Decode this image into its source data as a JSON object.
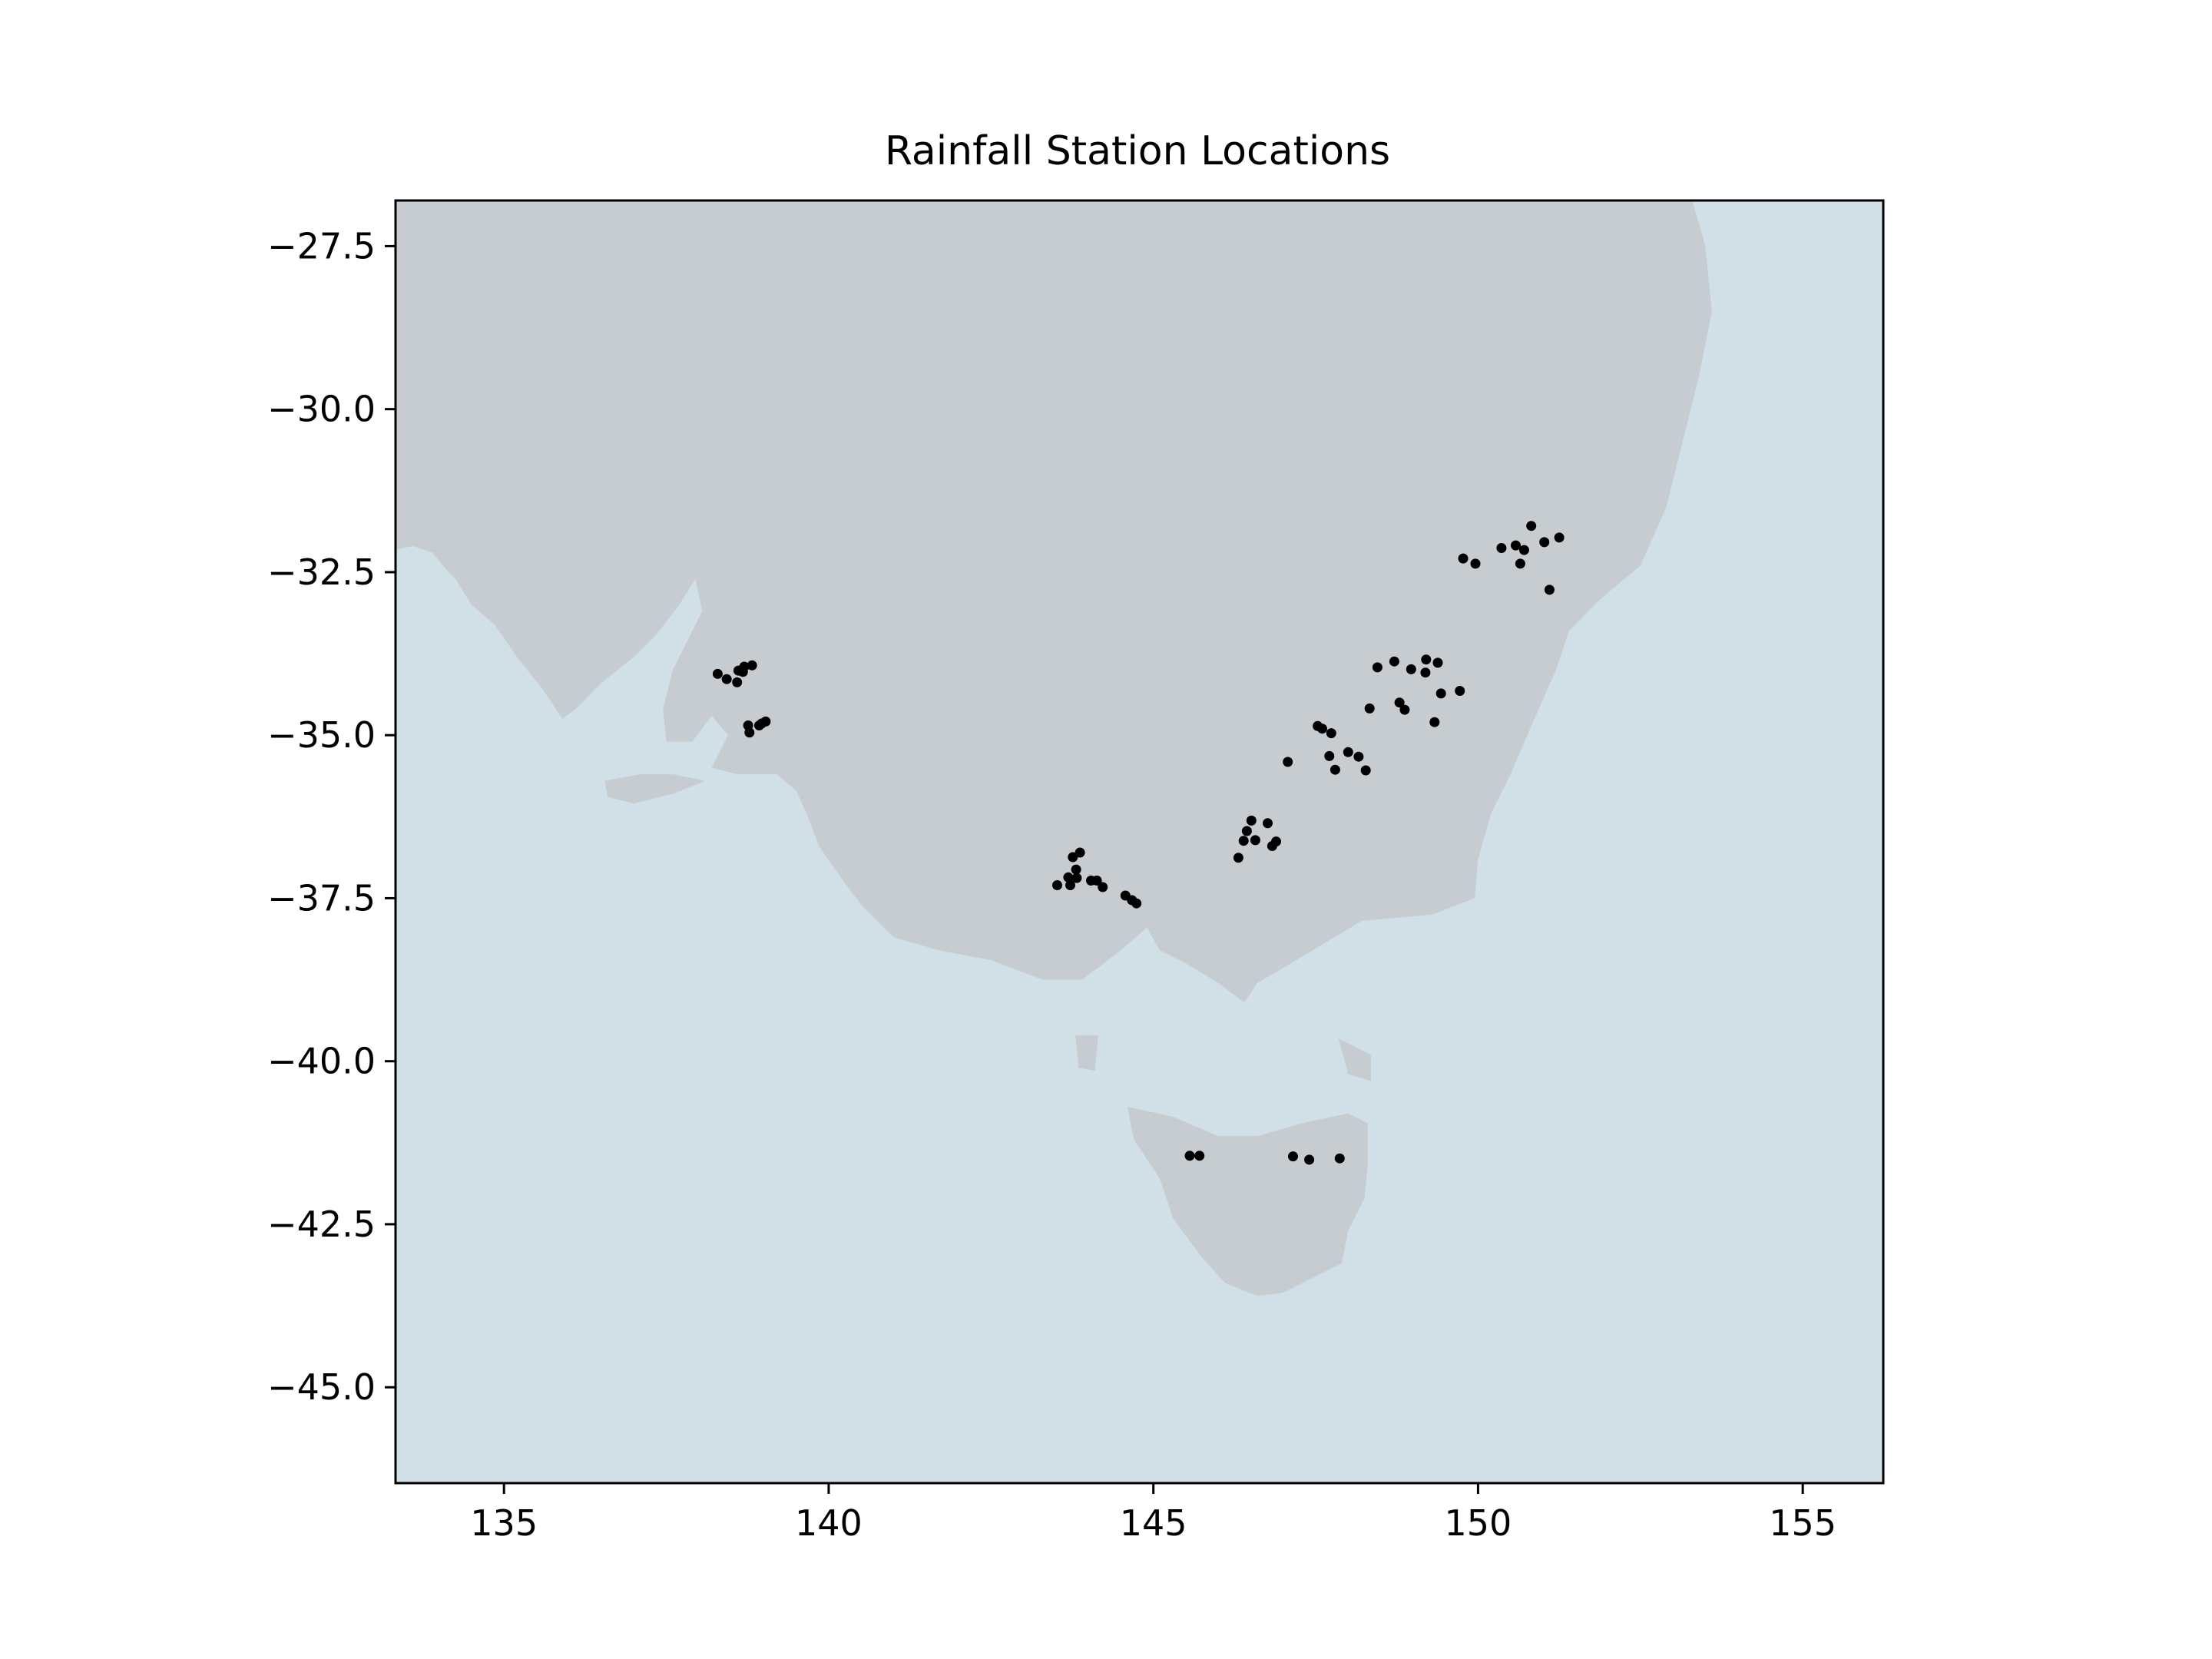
{
  "title": "Rainfall Station Locations",
  "map": {
    "extent": {
      "lon": [
        133.33,
        156.24
      ],
      "lat": [
        -46.47,
        -26.8
      ]
    },
    "colors": {
      "land": "#c6cccf",
      "ocean": "#d1e0e6",
      "station": "#000000",
      "frame": "#000000"
    },
    "x_ticks": [
      {
        "value": 135,
        "label": "135"
      },
      {
        "value": 140,
        "label": "140"
      },
      {
        "value": 145,
        "label": "145"
      },
      {
        "value": 150,
        "label": "150"
      },
      {
        "value": 155,
        "label": "155"
      }
    ],
    "y_ticks": [
      {
        "value": -27.5,
        "label": "−27.5"
      },
      {
        "value": -30.0,
        "label": "−30.0"
      },
      {
        "value": -32.5,
        "label": "−32.5"
      },
      {
        "value": -35.0,
        "label": "−35.0"
      },
      {
        "value": -37.5,
        "label": "−37.5"
      },
      {
        "value": -40.0,
        "label": "−40.0"
      },
      {
        "value": -42.5,
        "label": "−42.5"
      },
      {
        "value": -45.0,
        "label": "−45.0"
      }
    ],
    "mainland": [
      [
        133.33,
        -32.15
      ],
      [
        133.6,
        -32.1
      ],
      [
        133.9,
        -32.2
      ],
      [
        134.1,
        -32.45
      ],
      [
        134.25,
        -32.6
      ],
      [
        134.5,
        -33.0
      ],
      [
        134.85,
        -33.3
      ],
      [
        135.2,
        -33.8
      ],
      [
        135.6,
        -34.3
      ],
      [
        135.9,
        -34.75
      ],
      [
        136.1,
        -34.6
      ],
      [
        136.5,
        -34.2
      ],
      [
        137.0,
        -33.8
      ],
      [
        137.35,
        -33.45
      ],
      [
        137.7,
        -33.0
      ],
      [
        137.95,
        -32.6
      ],
      [
        138.05,
        -33.1
      ],
      [
        137.8,
        -33.6
      ],
      [
        137.6,
        -34.0
      ],
      [
        137.45,
        -34.6
      ],
      [
        137.5,
        -35.1
      ],
      [
        137.9,
        -35.1
      ],
      [
        138.2,
        -34.7
      ],
      [
        138.45,
        -35.0
      ],
      [
        138.2,
        -35.5
      ],
      [
        138.6,
        -35.6
      ],
      [
        139.2,
        -35.6
      ],
      [
        139.5,
        -35.85
      ],
      [
        139.7,
        -36.3
      ],
      [
        139.85,
        -36.7
      ],
      [
        140.2,
        -37.2
      ],
      [
        140.5,
        -37.6
      ],
      [
        141.0,
        -38.1
      ],
      [
        141.7,
        -38.3
      ],
      [
        142.5,
        -38.45
      ],
      [
        143.3,
        -38.75
      ],
      [
        143.9,
        -38.75
      ],
      [
        144.5,
        -38.3
      ],
      [
        144.9,
        -37.95
      ],
      [
        145.1,
        -38.3
      ],
      [
        145.5,
        -38.5
      ],
      [
        146.0,
        -38.8
      ],
      [
        146.4,
        -39.1
      ],
      [
        146.6,
        -38.8
      ],
      [
        147.2,
        -38.45
      ],
      [
        148.2,
        -37.85
      ],
      [
        149.3,
        -37.75
      ],
      [
        149.95,
        -37.5
      ],
      [
        150.0,
        -36.9
      ],
      [
        150.2,
        -36.2
      ],
      [
        150.5,
        -35.6
      ],
      [
        150.8,
        -34.9
      ],
      [
        151.2,
        -34.0
      ],
      [
        151.4,
        -33.4
      ],
      [
        151.9,
        -32.9
      ],
      [
        152.5,
        -32.4
      ],
      [
        152.9,
        -31.5
      ],
      [
        153.1,
        -30.7
      ],
      [
        153.4,
        -29.5
      ],
      [
        153.6,
        -28.5
      ],
      [
        153.5,
        -27.5
      ],
      [
        153.3,
        -26.8
      ],
      [
        133.33,
        -26.8
      ]
    ],
    "tasmania": [
      [
        144.6,
        -40.7
      ],
      [
        145.3,
        -40.85
      ],
      [
        146.0,
        -41.15
      ],
      [
        146.6,
        -41.15
      ],
      [
        147.3,
        -40.95
      ],
      [
        148.0,
        -40.8
      ],
      [
        148.3,
        -40.95
      ],
      [
        148.3,
        -41.6
      ],
      [
        148.25,
        -42.1
      ],
      [
        148.0,
        -42.6
      ],
      [
        147.9,
        -43.1
      ],
      [
        147.5,
        -43.3
      ],
      [
        147.0,
        -43.55
      ],
      [
        146.6,
        -43.6
      ],
      [
        146.1,
        -43.4
      ],
      [
        145.7,
        -42.95
      ],
      [
        145.3,
        -42.4
      ],
      [
        145.1,
        -41.8
      ],
      [
        144.7,
        -41.2
      ]
    ],
    "islands": [
      [
        [
          136.55,
          -35.7
        ],
        [
          137.1,
          -35.6
        ],
        [
          137.6,
          -35.6
        ],
        [
          138.1,
          -35.7
        ],
        [
          137.6,
          -35.9
        ],
        [
          137.0,
          -36.05
        ],
        [
          136.6,
          -35.95
        ]
      ],
      [
        [
          143.8,
          -39.6
        ],
        [
          144.15,
          -39.6
        ],
        [
          144.1,
          -40.15
        ],
        [
          143.85,
          -40.1
        ]
      ],
      [
        [
          147.85,
          -39.65
        ],
        [
          148.35,
          -39.9
        ],
        [
          148.35,
          -40.3
        ],
        [
          148.0,
          -40.2
        ]
      ]
    ],
    "stations": [
      [
        138.29,
        -34.06
      ],
      [
        138.43,
        -34.14
      ],
      [
        138.59,
        -34.19
      ],
      [
        138.61,
        -34.01
      ],
      [
        138.68,
        -34.03
      ],
      [
        138.7,
        -33.95
      ],
      [
        138.82,
        -33.93
      ],
      [
        138.76,
        -34.85
      ],
      [
        138.78,
        -34.96
      ],
      [
        138.93,
        -34.85
      ],
      [
        138.97,
        -34.82
      ],
      [
        139.03,
        -34.79
      ],
      [
        143.52,
        -37.3
      ],
      [
        143.69,
        -37.18
      ],
      [
        143.82,
        -37.19
      ],
      [
        143.81,
        -37.06
      ],
      [
        143.72,
        -37.3
      ],
      [
        143.76,
        -36.87
      ],
      [
        143.87,
        -36.8
      ],
      [
        144.04,
        -37.23
      ],
      [
        144.13,
        -37.23
      ],
      [
        144.22,
        -37.33
      ],
      [
        144.57,
        -37.46
      ],
      [
        144.67,
        -37.53
      ],
      [
        144.74,
        -37.58
      ],
      [
        145.56,
        -41.45
      ],
      [
        145.71,
        -41.45
      ],
      [
        147.15,
        -41.46
      ],
      [
        147.4,
        -41.51
      ],
      [
        147.87,
        -41.49
      ],
      [
        146.31,
        -36.88
      ],
      [
        146.39,
        -36.62
      ],
      [
        146.44,
        -36.47
      ],
      [
        146.51,
        -36.31
      ],
      [
        146.57,
        -36.61
      ],
      [
        146.76,
        -36.35
      ],
      [
        146.83,
        -36.7
      ],
      [
        146.89,
        -36.63
      ],
      [
        147.07,
        -35.41
      ],
      [
        147.53,
        -34.86
      ],
      [
        147.6,
        -34.9
      ],
      [
        147.74,
        -34.97
      ],
      [
        147.71,
        -35.32
      ],
      [
        147.8,
        -35.53
      ],
      [
        148.0,
        -35.26
      ],
      [
        148.16,
        -35.33
      ],
      [
        148.27,
        -35.54
      ],
      [
        148.33,
        -34.59
      ],
      [
        148.45,
        -33.96
      ],
      [
        148.71,
        -33.87
      ],
      [
        148.79,
        -34.5
      ],
      [
        148.87,
        -34.61
      ],
      [
        148.97,
        -33.99
      ],
      [
        149.2,
        -33.84
      ],
      [
        149.19,
        -34.04
      ],
      [
        149.38,
        -33.89
      ],
      [
        149.43,
        -34.36
      ],
      [
        149.33,
        -34.8
      ],
      [
        149.72,
        -34.32
      ],
      [
        149.77,
        -32.29
      ],
      [
        149.96,
        -32.37
      ],
      [
        150.36,
        -32.13
      ],
      [
        150.58,
        -32.09
      ],
      [
        150.71,
        -32.16
      ],
      [
        150.65,
        -32.37
      ],
      [
        150.82,
        -31.79
      ],
      [
        151.02,
        -32.04
      ],
      [
        151.25,
        -31.97
      ],
      [
        151.1,
        -32.77
      ]
    ]
  }
}
